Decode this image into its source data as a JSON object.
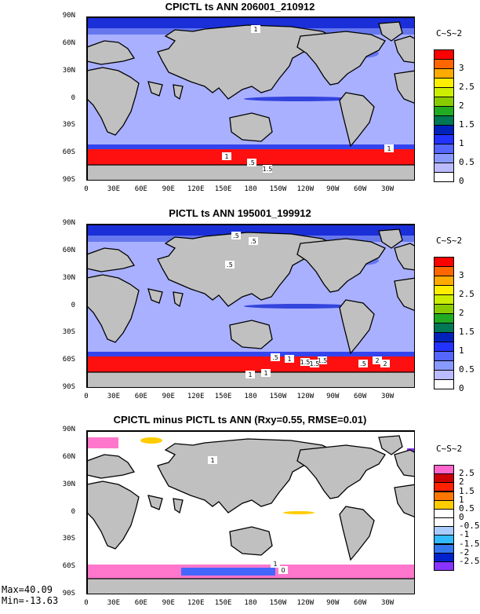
{
  "chart_data": [
    {
      "type": "heatmap",
      "title": "CPICTL ts ANN 206001_210912",
      "units": "C~S~2",
      "y_ticks": [
        "90N",
        "60N",
        "30N",
        "0",
        "30S",
        "60S",
        "90S"
      ],
      "x_ticks": [
        "0",
        "30E",
        "60E",
        "90E",
        "120E",
        "150E",
        "180",
        "150W",
        "120W",
        "90W",
        "60W",
        "30W"
      ],
      "colorbar_labels": [
        "3",
        "2.5",
        "2",
        "1.5",
        "1",
        "0.5",
        "0"
      ],
      "colorbar_colors": [
        "#ff0000",
        "#ff6600",
        "#ffaa00",
        "#ffee00",
        "#ccee00",
        "#88cc00",
        "#22aa22",
        "#007755",
        "#0022bb",
        "#2233ff",
        "#5566ff",
        "#8899ff",
        "#bbbbff",
        "#ffffff"
      ],
      "contour_labels": [
        "1",
        "1",
        ".5",
        "1.5",
        "1"
      ]
    },
    {
      "type": "heatmap",
      "title": "PICTL ts ANN 195001_199912",
      "units": "C~S~2",
      "y_ticks": [
        "90N",
        "60N",
        "30N",
        "0",
        "30S",
        "60S",
        "90S"
      ],
      "x_ticks": [
        "0",
        "30E",
        "60E",
        "90E",
        "120E",
        "150E",
        "180",
        "150W",
        "120W",
        "90W",
        "60W",
        "30W"
      ],
      "colorbar_labels": [
        "3",
        "2.5",
        "2",
        "1.5",
        "1",
        "0.5",
        "0"
      ],
      "colorbar_colors": [
        "#ff0000",
        "#ff6600",
        "#ffaa00",
        "#ffee00",
        "#ccee00",
        "#88cc00",
        "#22aa22",
        "#007755",
        "#0022bb",
        "#2233ff",
        "#5566ff",
        "#8899ff",
        "#bbbbff",
        "#ffffff"
      ],
      "contour_labels": [
        ".5",
        ".5",
        ".5",
        ".5",
        "1",
        "1.5",
        "1.5",
        "1",
        "1",
        "1.5",
        "2",
        ".5",
        "2"
      ]
    },
    {
      "type": "heatmap",
      "title": "CPICTL minus PICTL ts ANN (Rxy=0.55, RMSE=0.01)",
      "units": "C~S~2",
      "y_ticks": [
        "90N",
        "60N",
        "30N",
        "0",
        "30S",
        "60S",
        "90S"
      ],
      "x_ticks": [
        "0",
        "30E",
        "60E",
        "90E",
        "120E",
        "150E",
        "180",
        "150W",
        "120W",
        "90W",
        "60W",
        "30W"
      ],
      "colorbar_labels": [
        "2.5",
        "2",
        "1.5",
        "1",
        "0.5",
        "0",
        "-0.5",
        "-1",
        "-1.5",
        "-2",
        "-2.5"
      ],
      "colorbar_colors": [
        "#ff66cc",
        "#cc0000",
        "#ff2200",
        "#ff7700",
        "#ffcc00",
        "#ffffff",
        "#ffffff",
        "#aaccff",
        "#33bbff",
        "#3377ee",
        "#0022cc",
        "#8833ff"
      ],
      "contour_labels": [
        "1",
        "1",
        "0"
      ],
      "max_label": "Max=40.09",
      "min_label": "Min=-13.63"
    }
  ]
}
